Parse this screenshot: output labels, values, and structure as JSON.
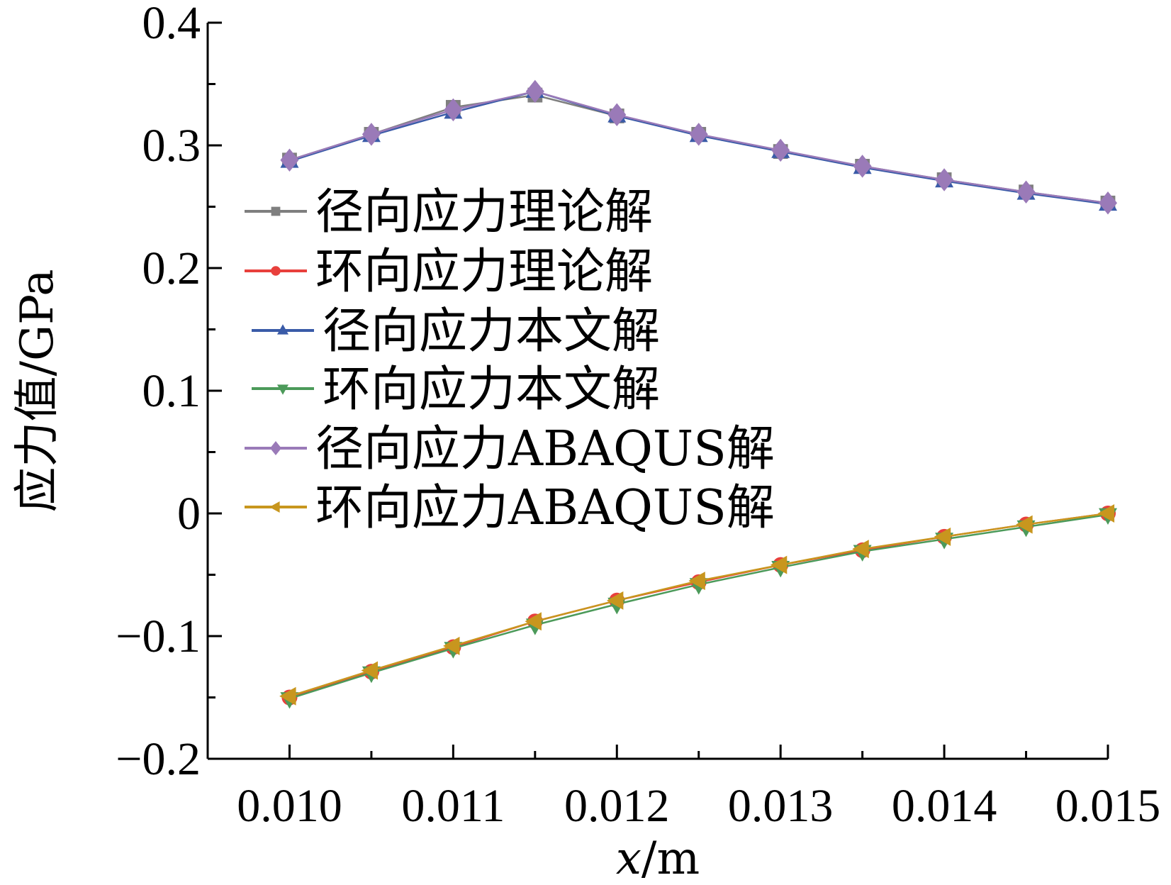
{
  "chart_data": {
    "type": "line",
    "xlabel_var": "x",
    "xlabel_unit": "/m",
    "ylabel": "应力值/GPa",
    "xlim": [
      0.0095,
      0.015
    ],
    "ylim": [
      -0.2,
      0.4
    ],
    "xticks": [
      0.01,
      0.011,
      0.012,
      0.013,
      0.014,
      0.015
    ],
    "xtick_labels": [
      "0.010",
      "0.011",
      "0.012",
      "0.013",
      "0.014",
      "0.015"
    ],
    "yticks": [
      -0.2,
      -0.1,
      0,
      0.1,
      0.2,
      0.3,
      0.4
    ],
    "ytick_labels": [
      "−0.2",
      "−0.1",
      "0",
      "0.1",
      "0.2",
      "0.3",
      "0.4"
    ],
    "grid": false,
    "legend_position": "center-left",
    "x": [
      0.01,
      0.0105,
      0.011,
      0.0115,
      0.012,
      0.0125,
      0.013,
      0.0135,
      0.014,
      0.0145,
      0.015
    ],
    "series": [
      {
        "name": "径向应力理论解",
        "color": "#7f7f7f",
        "marker": "square",
        "values": [
          0.288,
          0.309,
          0.331,
          0.341,
          0.324,
          0.309,
          0.295,
          0.283,
          0.272,
          0.262,
          0.253
        ]
      },
      {
        "name": "环向应力理论解",
        "color": "#e8403c",
        "marker": "circle",
        "values": [
          -0.15,
          -0.129,
          -0.109,
          -0.088,
          -0.071,
          -0.056,
          -0.042,
          -0.03,
          -0.019,
          -0.009,
          0.0
        ]
      },
      {
        "name": "径向应力本文解",
        "color": "#3a5ba8",
        "marker": "triangle-up",
        "values": [
          0.287,
          0.308,
          0.327,
          0.344,
          0.324,
          0.308,
          0.295,
          0.282,
          0.271,
          0.261,
          0.252
        ]
      },
      {
        "name": "环向应力本文解",
        "color": "#4c9a5a",
        "marker": "triangle-down",
        "values": [
          -0.151,
          -0.13,
          -0.11,
          -0.091,
          -0.074,
          -0.058,
          -0.044,
          -0.031,
          -0.021,
          -0.011,
          -0.001
        ]
      },
      {
        "name": "径向应力ABAQUS解",
        "color": "#9a7ab8",
        "marker": "diamond",
        "values": [
          0.288,
          0.309,
          0.329,
          0.344,
          0.325,
          0.309,
          0.296,
          0.283,
          0.272,
          0.262,
          0.253
        ]
      },
      {
        "name": "环向应力ABAQUS解",
        "color": "#c8961e",
        "marker": "triangle-left",
        "values": [
          -0.149,
          -0.128,
          -0.108,
          -0.088,
          -0.071,
          -0.055,
          -0.042,
          -0.029,
          -0.019,
          -0.009,
          0.0
        ]
      }
    ]
  }
}
